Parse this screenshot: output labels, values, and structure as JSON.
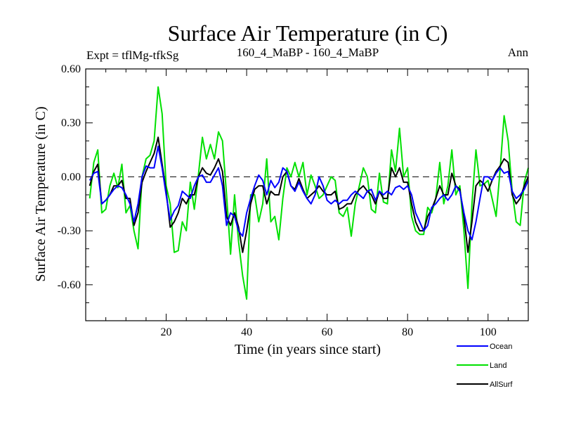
{
  "chart_data": {
    "type": "line",
    "title": "Surface Air Temperature (in C)",
    "subtitle_left": "Expt = tflMg-tfkSg",
    "subtitle_center": "160_4_MaBP - 160_4_MaBP",
    "subtitle_right": "Ann",
    "xlabel": "Time (in years since start)",
    "ylabel": "Surface Air Temperature (in C)",
    "xlim": [
      0,
      110
    ],
    "ylim": [
      -0.8,
      0.6
    ],
    "x_ticks": [
      20,
      40,
      60,
      80,
      100
    ],
    "x_tick_labels": [
      "20",
      "40",
      "60",
      "80",
      "100"
    ],
    "y_ticks": [
      0.6,
      0.3,
      0.0,
      -0.3,
      -0.6
    ],
    "y_tick_labels": [
      "0.60",
      "0.30",
      "0.00",
      "-0.30",
      "-0.60"
    ],
    "zero_line": "dashed",
    "x": [
      1,
      2,
      3,
      4,
      5,
      6,
      7,
      8,
      9,
      10,
      11,
      12,
      13,
      14,
      15,
      16,
      17,
      18,
      19,
      20,
      21,
      22,
      23,
      24,
      25,
      26,
      27,
      28,
      29,
      30,
      31,
      32,
      33,
      34,
      35,
      36,
      37,
      38,
      39,
      40,
      41,
      42,
      43,
      44,
      45,
      46,
      47,
      48,
      49,
      50,
      51,
      52,
      53,
      54,
      55,
      56,
      57,
      58,
      59,
      60,
      61,
      62,
      63,
      64,
      65,
      66,
      67,
      68,
      69,
      70,
      71,
      72,
      73,
      74,
      75,
      76,
      77,
      78,
      79,
      80,
      81,
      82,
      83,
      84,
      85,
      86,
      87,
      88,
      89,
      90,
      91,
      92,
      93,
      94,
      95,
      96,
      97,
      98,
      99,
      100,
      101,
      102,
      103,
      104,
      105,
      106,
      107,
      108,
      109,
      110
    ],
    "series": [
      {
        "name": "Ocean",
        "color": "#0000ff",
        "values": [
          -0.02,
          0.02,
          0.03,
          -0.15,
          -0.13,
          -0.1,
          -0.07,
          -0.05,
          -0.06,
          -0.1,
          -0.15,
          -0.25,
          -0.15,
          0.0,
          0.06,
          0.05,
          0.05,
          0.17,
          0.05,
          -0.1,
          -0.24,
          -0.19,
          -0.16,
          -0.08,
          -0.1,
          -0.12,
          -0.05,
          0.0,
          0.01,
          -0.03,
          -0.03,
          0.01,
          0.05,
          -0.05,
          -0.27,
          -0.2,
          -0.22,
          -0.3,
          -0.33,
          -0.2,
          -0.12,
          -0.05,
          0.01,
          -0.02,
          -0.1,
          -0.02,
          -0.06,
          -0.03,
          0.05,
          0.03,
          -0.05,
          -0.08,
          -0.03,
          -0.08,
          -0.12,
          -0.15,
          -0.1,
          0.0,
          -0.05,
          -0.13,
          -0.15,
          -0.13,
          -0.15,
          -0.13,
          -0.13,
          -0.1,
          -0.08,
          -0.1,
          -0.12,
          -0.08,
          -0.07,
          -0.13,
          -0.08,
          -0.1,
          -0.08,
          -0.1,
          -0.06,
          -0.05,
          -0.07,
          -0.05,
          -0.1,
          -0.2,
          -0.25,
          -0.3,
          -0.27,
          -0.17,
          -0.15,
          -0.12,
          -0.1,
          -0.13,
          -0.1,
          -0.05,
          -0.08,
          -0.2,
          -0.3,
          -0.35,
          -0.25,
          -0.12,
          0.0,
          0.0,
          -0.02,
          0.02,
          0.05,
          0.02,
          0.03,
          -0.08,
          -0.12,
          -0.1,
          -0.07,
          -0.02
        ]
      },
      {
        "name": "Land",
        "color": "#00e000",
        "values": [
          -0.12,
          0.08,
          0.15,
          -0.2,
          -0.18,
          -0.05,
          0.02,
          -0.06,
          0.07,
          -0.2,
          -0.16,
          -0.3,
          -0.4,
          0.0,
          0.1,
          0.12,
          0.2,
          0.5,
          0.35,
          -0.05,
          -0.15,
          -0.42,
          -0.41,
          -0.25,
          -0.3,
          -0.03,
          -0.18,
          0.01,
          0.22,
          0.1,
          0.18,
          0.1,
          0.25,
          0.2,
          -0.1,
          -0.43,
          -0.1,
          -0.36,
          -0.55,
          -0.68,
          -0.1,
          -0.1,
          -0.25,
          -0.15,
          0.1,
          -0.25,
          -0.22,
          -0.35,
          -0.12,
          0.05,
          0.0,
          0.08,
          0.0,
          0.08,
          -0.1,
          0.01,
          -0.05,
          -0.12,
          -0.1,
          -0.05,
          0.0,
          -0.02,
          -0.2,
          -0.22,
          -0.17,
          -0.33,
          -0.15,
          -0.05,
          0.05,
          0.0,
          -0.18,
          -0.2,
          0.02,
          -0.14,
          -0.15,
          0.15,
          0.03,
          0.27,
          0.0,
          0.05,
          -0.22,
          -0.3,
          -0.32,
          -0.32,
          -0.17,
          -0.2,
          -0.12,
          0.08,
          -0.15,
          -0.05,
          0.15,
          -0.1,
          -0.05,
          -0.3,
          -0.62,
          -0.15,
          0.15,
          -0.05,
          -0.04,
          -0.02,
          -0.12,
          -0.22,
          0.04,
          0.34,
          0.2,
          -0.08,
          -0.25,
          -0.27,
          -0.03,
          0.05
        ]
      },
      {
        "name": "AllSurf",
        "color": "#000000",
        "values": [
          -0.05,
          0.03,
          0.07,
          -0.15,
          -0.13,
          -0.1,
          -0.05,
          -0.05,
          -0.02,
          -0.12,
          -0.12,
          -0.27,
          -0.2,
          -0.03,
          0.03,
          0.08,
          0.13,
          0.22,
          0.07,
          -0.08,
          -0.28,
          -0.25,
          -0.2,
          -0.12,
          -0.15,
          -0.1,
          -0.1,
          0.0,
          0.05,
          0.02,
          0.01,
          0.05,
          0.1,
          0.03,
          -0.22,
          -0.27,
          -0.2,
          -0.28,
          -0.42,
          -0.3,
          -0.15,
          -0.07,
          -0.05,
          -0.05,
          -0.15,
          -0.08,
          -0.1,
          -0.1,
          0.0,
          0.03,
          -0.05,
          -0.07,
          -0.01,
          -0.07,
          -0.12,
          -0.1,
          -0.08,
          -0.05,
          -0.08,
          -0.1,
          -0.1,
          -0.08,
          -0.18,
          -0.17,
          -0.15,
          -0.15,
          -0.1,
          -0.07,
          -0.05,
          -0.08,
          -0.1,
          -0.15,
          -0.08,
          -0.12,
          -0.12,
          0.05,
          0.0,
          0.05,
          -0.03,
          -0.03,
          -0.15,
          -0.25,
          -0.3,
          -0.3,
          -0.22,
          -0.18,
          -0.12,
          -0.05,
          -0.1,
          -0.1,
          0.02,
          -0.05,
          -0.07,
          -0.22,
          -0.42,
          -0.25,
          -0.05,
          -0.02,
          -0.04,
          -0.08,
          -0.02,
          0.03,
          0.06,
          0.1,
          0.08,
          -0.1,
          -0.15,
          -0.12,
          -0.05,
          0.0
        ]
      }
    ],
    "legend_position": "bottom-right"
  }
}
